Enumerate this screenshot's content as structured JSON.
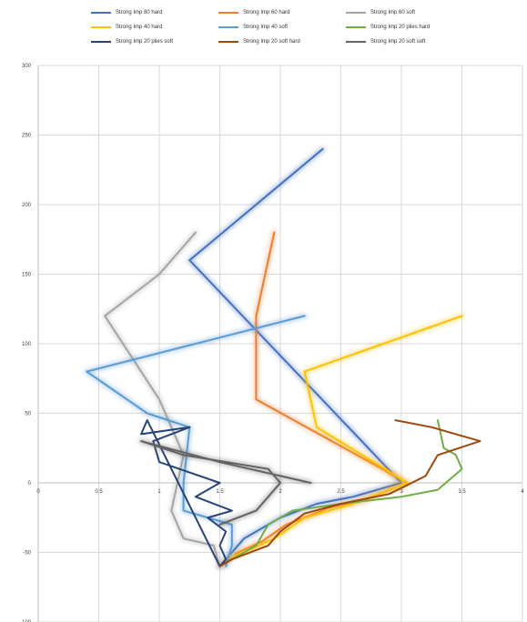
{
  "chart_data": {
    "type": "line",
    "title": "",
    "xlabel": "",
    "ylabel": "",
    "xlim": [
      0,
      4
    ],
    "ylim": [
      -100,
      300
    ],
    "xticks": [
      0,
      0.5,
      1,
      1.5,
      2,
      2.5,
      3,
      3.5,
      4
    ],
    "xtick_labels": [
      "0",
      "0.5",
      "1",
      "1.5",
      "2",
      "2.5",
      "3",
      "3.5",
      "4"
    ],
    "yticks": [
      -100,
      -50,
      0,
      50,
      100,
      150,
      200,
      250,
      300
    ],
    "ytick_labels": [
      "-100",
      "-50",
      "0",
      "50",
      "100",
      "150",
      "200",
      "250",
      "300"
    ],
    "grid": true,
    "legend_position": "top",
    "series": [
      {
        "name": "Strong Imp 80 hard",
        "color": "#4472c4",
        "glow": true,
        "points": [
          [
            2.35,
            240
          ],
          [
            1.25,
            160
          ],
          [
            3.0,
            0
          ],
          [
            2.6,
            -10
          ],
          [
            2.3,
            -15
          ],
          [
            2.0,
            -25
          ],
          [
            1.7,
            -40
          ],
          [
            1.55,
            -55
          ],
          [
            1.5,
            -60
          ]
        ]
      },
      {
        "name": "Strong Imp 60 hard",
        "color": "#ed7d31",
        "glow": true,
        "points": [
          [
            1.95,
            180
          ],
          [
            1.8,
            120
          ],
          [
            1.8,
            60
          ],
          [
            3.05,
            0
          ],
          [
            2.7,
            -12
          ],
          [
            2.4,
            -18
          ],
          [
            2.05,
            -30
          ],
          [
            1.85,
            -42
          ],
          [
            1.65,
            -50
          ],
          [
            1.5,
            -60
          ]
        ]
      },
      {
        "name": "Strong Imp 60 soft",
        "color": "#a5a5a5",
        "glow": true,
        "points": [
          [
            1.3,
            180
          ],
          [
            1.0,
            150
          ],
          [
            0.55,
            120
          ],
          [
            1.0,
            60
          ],
          [
            1.2,
            20
          ],
          [
            1.1,
            -20
          ],
          [
            1.2,
            -40
          ],
          [
            1.45,
            -45
          ],
          [
            1.5,
            -60
          ]
        ]
      },
      {
        "name": "Strong Imp 40 hard",
        "color": "#ffc000",
        "glow": true,
        "points": [
          [
            3.5,
            120
          ],
          [
            2.2,
            80
          ],
          [
            2.3,
            40
          ],
          [
            3.05,
            0
          ],
          [
            2.6,
            -15
          ],
          [
            2.2,
            -25
          ],
          [
            1.95,
            -40
          ],
          [
            1.75,
            -48
          ],
          [
            1.55,
            -55
          ]
        ]
      },
      {
        "name": "Strong Imp 40 soft",
        "color": "#5b9bd5",
        "glow": true,
        "points": [
          [
            2.2,
            120
          ],
          [
            0.4,
            80
          ],
          [
            0.9,
            50
          ],
          [
            1.25,
            40
          ],
          [
            1.2,
            0
          ],
          [
            1.2,
            -20
          ],
          [
            1.6,
            -30
          ],
          [
            1.6,
            -45
          ],
          [
            1.55,
            -60
          ]
        ]
      },
      {
        "name": "Strong Imp 20 plies hard",
        "color": "#70ad47",
        "glow": false,
        "points": [
          [
            3.3,
            45
          ],
          [
            3.35,
            25
          ],
          [
            3.45,
            20
          ],
          [
            3.5,
            10
          ],
          [
            3.3,
            -5
          ],
          [
            3.0,
            -10
          ],
          [
            2.5,
            -15
          ],
          [
            2.1,
            -20
          ],
          [
            1.9,
            -30
          ],
          [
            1.8,
            -45
          ],
          [
            1.5,
            -60
          ]
        ]
      },
      {
        "name": "Strong Imp 20 plies soft",
        "color": "#264478",
        "glow": false,
        "points": [
          [
            1.5,
            0
          ],
          [
            1.3,
            -10
          ],
          [
            1.6,
            -20
          ],
          [
            1.4,
            -25
          ],
          [
            1.55,
            -35
          ],
          [
            1.5,
            -45
          ],
          [
            1.55,
            -55
          ],
          [
            1.5,
            -60
          ],
          [
            0.9,
            45
          ],
          [
            0.85,
            35
          ],
          [
            1.25,
            40
          ],
          [
            0.95,
            30
          ],
          [
            1.0,
            15
          ],
          [
            1.5,
            0
          ]
        ]
      },
      {
        "name": "Strong Imp 20 soft hard",
        "color": "#9e480e",
        "glow": false,
        "points": [
          [
            2.95,
            45
          ],
          [
            3.25,
            40
          ],
          [
            3.65,
            30
          ],
          [
            3.3,
            20
          ],
          [
            3.2,
            5
          ],
          [
            2.9,
            -8
          ],
          [
            2.5,
            -15
          ],
          [
            2.2,
            -22
          ],
          [
            2.0,
            -35
          ],
          [
            1.9,
            -45
          ],
          [
            1.6,
            -55
          ],
          [
            1.5,
            -60
          ]
        ]
      },
      {
        "name": "Strong Imp 20 soft soft",
        "color": "#636363",
        "glow": true,
        "points": [
          [
            2.25,
            0
          ],
          [
            1.5,
            15
          ],
          [
            0.85,
            30
          ],
          [
            1.2,
            20
          ],
          [
            1.9,
            10
          ],
          [
            2.0,
            0
          ],
          [
            1.9,
            -10
          ],
          [
            1.8,
            -20
          ],
          [
            1.5,
            -30
          ]
        ]
      }
    ]
  }
}
